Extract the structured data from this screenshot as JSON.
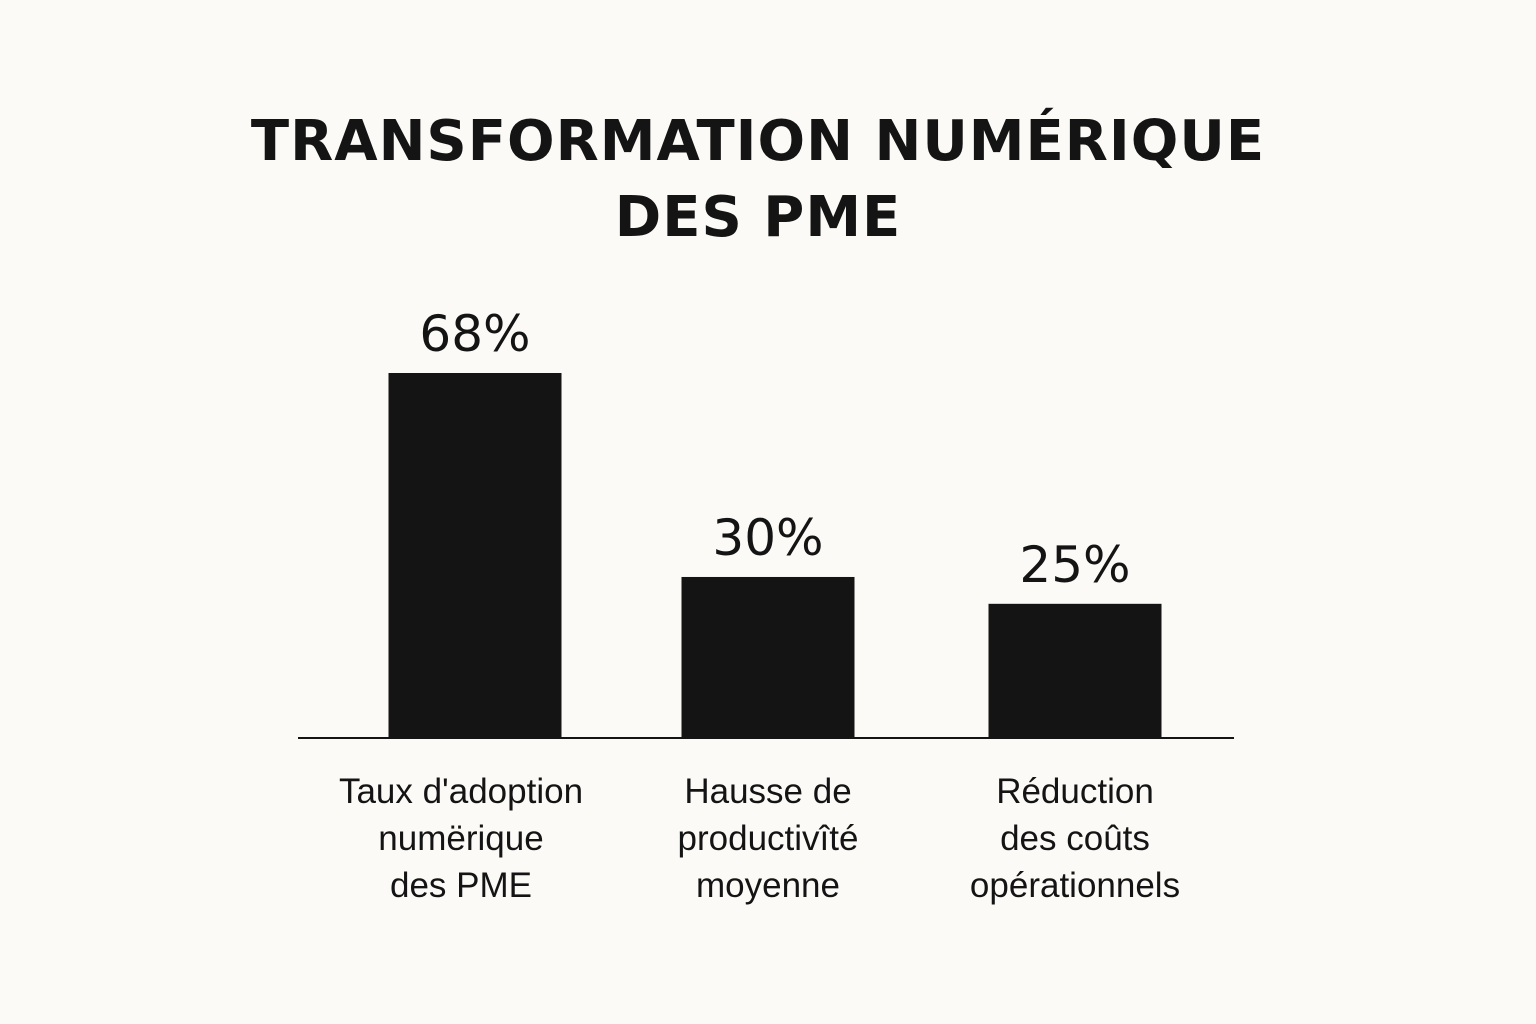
{
  "chart_data": {
    "type": "bar",
    "title_lines": [
      "TRANSFORMATION NUMÉRIQUE",
      "DES PME"
    ],
    "categories": [
      [
        "Taux d'adoption",
        "numërique",
        "des PME"
      ],
      [
        "Hausse de",
        "productivîté",
        "moyenne"
      ],
      [
        "Réduction",
        "des coûts",
        "opérationnels"
      ]
    ],
    "values": [
      68,
      30,
      25
    ],
    "value_labels": [
      "68%",
      "30%",
      "25%"
    ],
    "bar_color": "#141414",
    "axis_color": "#141414",
    "grid": false,
    "legend": "none"
  }
}
